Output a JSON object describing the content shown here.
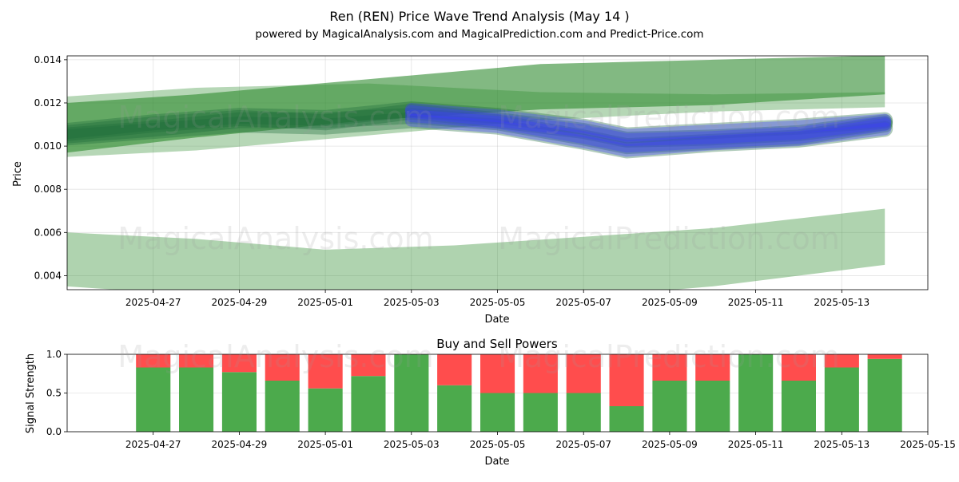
{
  "title": "Ren (REN) Price Wave Trend Analysis (May 14 )",
  "subtitle": "powered by MagicalAnalysis.com and MagicalPrediction.com and Predict-Price.com",
  "watermarks": [
    "MagicalAnalysis.com",
    "MagicalPrediction.com"
  ],
  "chart_data": [
    {
      "type": "area",
      "xlabel": "Date",
      "ylabel": "Price",
      "ylim": [
        0.00335,
        0.01418
      ],
      "xlim": [
        "2025-04-25",
        "2025-05-15"
      ],
      "grid": true,
      "x_ticks": [
        "2025-04-27",
        "2025-04-29",
        "2025-05-01",
        "2025-05-03",
        "2025-05-05",
        "2025-05-07",
        "2025-05-09",
        "2025-05-11",
        "2025-05-13"
      ],
      "y_ticks": [
        "0.004",
        "0.006",
        "0.008",
        "0.010",
        "0.012",
        "0.014"
      ],
      "bands_color": "#2e8b2e",
      "wave_color": "#3b3bff",
      "bands": [
        {
          "x": [
            "2025-04-25",
            "2025-04-28",
            "2025-05-02",
            "2025-05-06",
            "2025-05-10",
            "2025-05-14"
          ],
          "upper": [
            0.012,
            0.0124,
            0.0131,
            0.0138,
            0.014,
            0.0142
          ],
          "lower": [
            0.0097,
            0.0104,
            0.0112,
            0.0117,
            0.0119,
            0.0124
          ]
        },
        {
          "x": [
            "2025-04-25",
            "2025-04-28",
            "2025-05-02",
            "2025-05-06",
            "2025-05-10",
            "2025-05-14"
          ],
          "upper": [
            0.0123,
            0.0127,
            0.0129,
            0.0125,
            0.0124,
            0.0125
          ],
          "lower": [
            0.0095,
            0.0098,
            0.0105,
            0.0112,
            0.0116,
            0.0118
          ]
        },
        {
          "x": [
            "2025-04-25",
            "2025-04-28",
            "2025-05-01",
            "2025-05-04",
            "2025-05-07",
            "2025-05-10",
            "2025-05-14"
          ],
          "upper": [
            0.006,
            0.0057,
            0.0052,
            0.0054,
            0.0058,
            0.0062,
            0.0071
          ],
          "lower": [
            0.0035,
            0.0031,
            0.0029,
            0.0029,
            0.003,
            0.0035,
            0.0045
          ]
        }
      ],
      "waves": [
        {
          "x": [
            "2025-04-25",
            "2025-04-27",
            "2025-04-29",
            "2025-05-01",
            "2025-05-03",
            "2025-05-05",
            "2025-05-07",
            "2025-05-08",
            "2025-05-10",
            "2025-05-12",
            "2025-05-14"
          ],
          "y": [
            0.0105,
            0.0108,
            0.0112,
            0.0112,
            0.0114,
            0.0111,
            0.0104,
            0.01,
            0.0102,
            0.0104,
            0.011
          ]
        },
        {
          "x": [
            "2025-04-25",
            "2025-04-27",
            "2025-04-29",
            "2025-05-01",
            "2025-05-03",
            "2025-05-05",
            "2025-05-07",
            "2025-05-08",
            "2025-05-10",
            "2025-05-12",
            "2025-05-14"
          ],
          "y": [
            0.0106,
            0.011,
            0.0113,
            0.0111,
            0.0116,
            0.0112,
            0.0107,
            0.0103,
            0.0104,
            0.0106,
            0.0111
          ]
        },
        {
          "x": [
            "2025-04-25",
            "2025-04-27",
            "2025-04-29",
            "2025-05-01",
            "2025-05-03",
            "2025-05-05",
            "2025-05-07",
            "2025-05-08",
            "2025-05-10",
            "2025-05-12",
            "2025-05-14"
          ],
          "y": [
            0.0104,
            0.0107,
            0.011,
            0.0109,
            0.0112,
            0.0109,
            0.0102,
            0.0098,
            0.0101,
            0.0103,
            0.0108
          ]
        },
        {
          "x": [
            "2025-04-25",
            "2025-04-27",
            "2025-04-29",
            "2025-05-01",
            "2025-05-03",
            "2025-05-05",
            "2025-05-07",
            "2025-05-08",
            "2025-05-10",
            "2025-05-12",
            "2025-05-14"
          ],
          "y": [
            0.0107,
            0.0111,
            0.0114,
            0.0113,
            0.0117,
            0.0114,
            0.0109,
            0.0105,
            0.0107,
            0.0109,
            0.0112
          ]
        }
      ]
    },
    {
      "type": "bar",
      "title": "Buy and Sell Powers",
      "xlabel": "Date",
      "ylabel": "Signal Strength",
      "ylim": [
        0,
        1
      ],
      "xlim": [
        "2025-04-25",
        "2025-05-15"
      ],
      "grid": true,
      "x_ticks": [
        "2025-04-27",
        "2025-04-29",
        "2025-05-01",
        "2025-05-03",
        "2025-05-05",
        "2025-05-07",
        "2025-05-09",
        "2025-05-11",
        "2025-05-13",
        "2025-05-15"
      ],
      "y_ticks": [
        "0.0",
        "0.5",
        "1.0"
      ],
      "buy_color": "#4caa4c",
      "sell_color": "#ff4d4d",
      "categories": [
        "2025-04-27",
        "2025-04-28",
        "2025-04-29",
        "2025-04-30",
        "2025-05-01",
        "2025-05-02",
        "2025-05-03",
        "2025-05-04",
        "2025-05-05",
        "2025-05-06",
        "2025-05-07",
        "2025-05-08",
        "2025-05-09",
        "2025-05-10",
        "2025-05-11",
        "2025-05-12",
        "2025-05-13",
        "2025-05-14"
      ],
      "series": [
        {
          "name": "Buy",
          "values": [
            0.83,
            0.83,
            0.77,
            0.66,
            0.56,
            0.72,
            1.0,
            0.6,
            0.5,
            0.5,
            0.5,
            0.33,
            0.66,
            0.66,
            1.0,
            0.66,
            0.83,
            0.94
          ]
        },
        {
          "name": "Sell",
          "values": [
            0.17,
            0.17,
            0.23,
            0.34,
            0.44,
            0.28,
            0.0,
            0.4,
            0.5,
            0.5,
            0.5,
            0.67,
            0.34,
            0.34,
            0.0,
            0.34,
            0.17,
            0.06
          ]
        }
      ]
    }
  ]
}
